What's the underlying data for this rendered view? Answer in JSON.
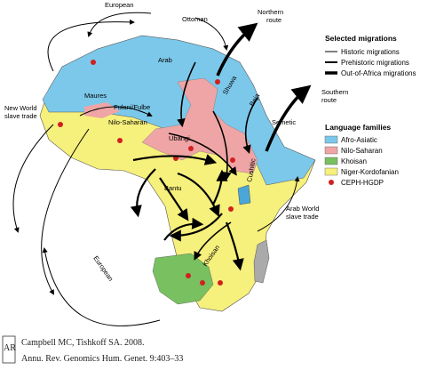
{
  "map": {
    "european_top": "European",
    "ottoman": "Ottoman",
    "northern_route": [
      "Northern",
      "route"
    ],
    "arab": "Arab",
    "maures": "Maures",
    "shuwa": "Shuwa",
    "beja": "Beja",
    "semetic": "Semetic",
    "southern_route": [
      "Southern",
      "route"
    ],
    "fulani": "Fulani/Fulbe",
    "nilo_saharan": "Nilo-Saharan",
    "new_world": [
      "New World",
      "slave trade"
    ],
    "ubangi": "Ubangi",
    "bantu": "Bantu",
    "cushitic": "Cushitic",
    "arab_world": [
      "Arab World",
      "slave trade"
    ],
    "european_bottom": "European",
    "khoisan": "Khoisan"
  },
  "legend": {
    "migrations_title": "Selected migrations",
    "migrations": [
      "Historic migrations",
      "Prehistoric migrations",
      "Out-of-Africa migrations"
    ],
    "families_title": "Language families",
    "families": [
      "Afro-Asiatic",
      "Nilo-Saharan",
      "Khoisan",
      "Niger-Kordofanian",
      "CEPH-HGDP"
    ]
  },
  "citation": {
    "logo": "AR",
    "line1": "Campbell MC, Tishkoff SA. 2008.",
    "line2": "Annu. Rev. Genomics Hum. Genet. 9:403–33"
  }
}
